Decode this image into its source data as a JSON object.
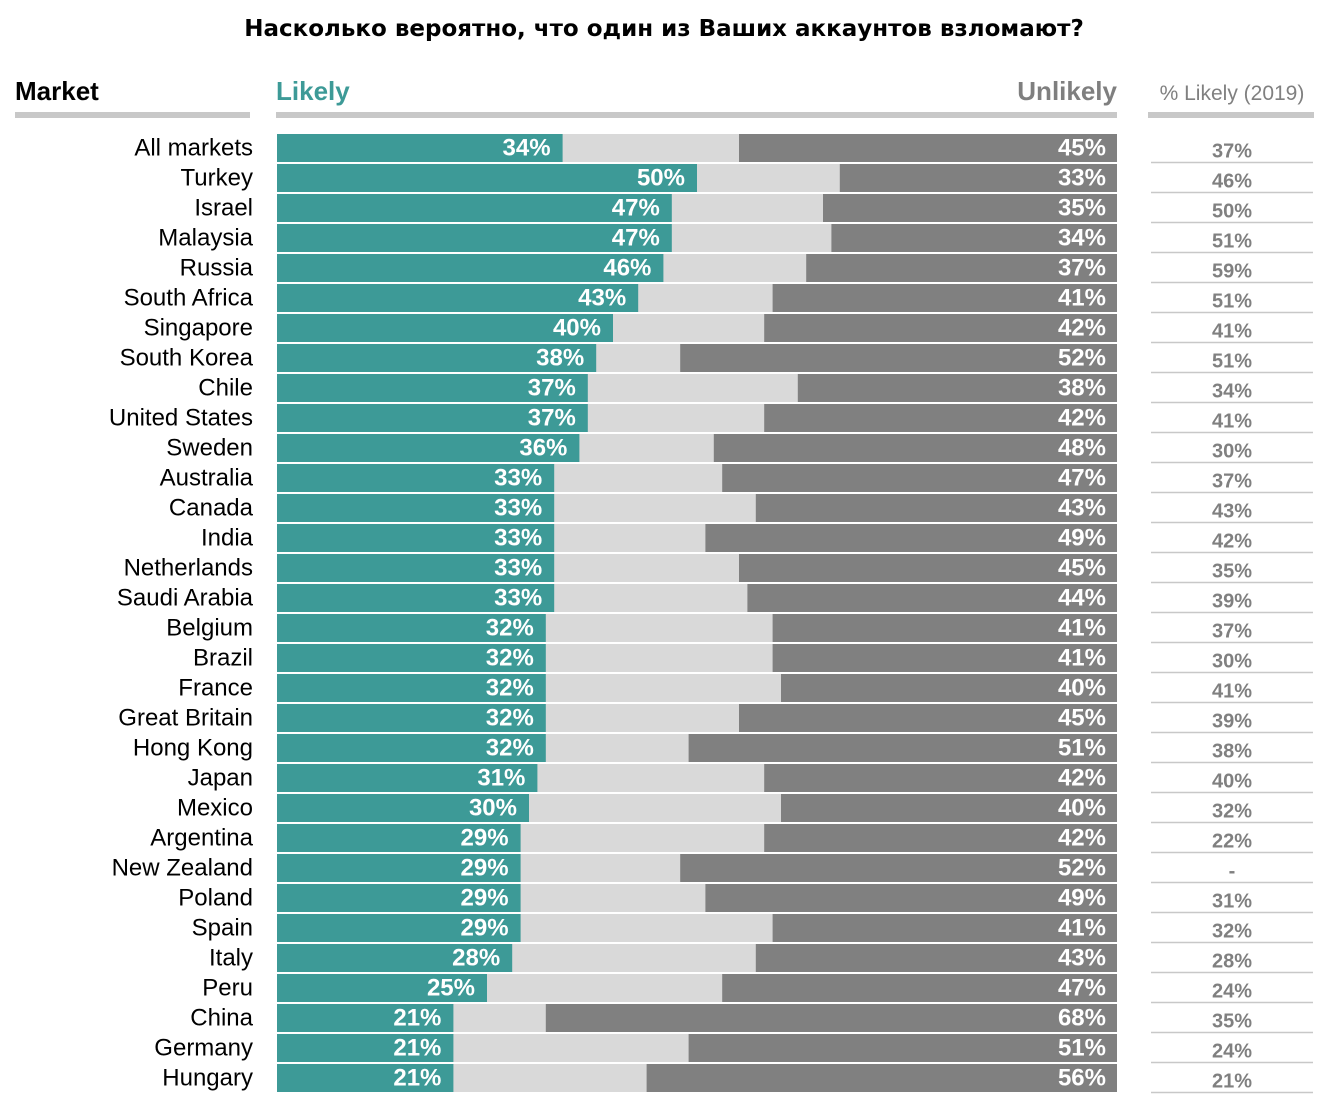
{
  "title": "Насколько вероятно, что один из Ваших аккаунтов взломают?",
  "headers": {
    "market": "Market",
    "likely": "Likely",
    "unlikely": "Unlikely",
    "likely_2019": "% Likely (2019)"
  },
  "colors": {
    "likely": "#3d9a97",
    "neutral": "#d9d9d9",
    "unlikely": "#808080",
    "rule": "#c8c8c8"
  },
  "chart_data": {
    "type": "bar",
    "orientation": "horizontal-stacked",
    "grid": false,
    "xlim": [
      0,
      100
    ],
    "categories": [
      "All markets",
      "Turkey",
      "Israel",
      "Malaysia",
      "Russia",
      "South Africa",
      "Singapore",
      "South Korea",
      "Chile",
      "United States",
      "Sweden",
      "Australia",
      "Canada",
      "India",
      "Netherlands",
      "Saudi Arabia",
      "Belgium",
      "Brazil",
      "France",
      "Great Britain",
      "Hong Kong",
      "Japan",
      "Mexico",
      "Argentina",
      "New Zealand",
      "Poland",
      "Spain",
      "Italy",
      "Peru",
      "China",
      "Germany",
      "Hungary"
    ],
    "series": [
      {
        "name": "Likely",
        "values": [
          34,
          50,
          47,
          47,
          46,
          43,
          40,
          38,
          37,
          37,
          36,
          33,
          33,
          33,
          33,
          33,
          32,
          32,
          32,
          32,
          32,
          31,
          30,
          29,
          29,
          29,
          29,
          28,
          25,
          21,
          21,
          21
        ]
      },
      {
        "name": "Unlikely",
        "values": [
          45,
          33,
          35,
          34,
          37,
          41,
          42,
          52,
          38,
          42,
          48,
          47,
          43,
          49,
          45,
          44,
          41,
          41,
          40,
          45,
          51,
          42,
          40,
          42,
          52,
          49,
          41,
          43,
          47,
          68,
          51,
          56
        ]
      }
    ],
    "likely_2019": [
      "37%",
      "46%",
      "50%",
      "51%",
      "59%",
      "51%",
      "41%",
      "51%",
      "34%",
      "41%",
      "30%",
      "37%",
      "43%",
      "42%",
      "35%",
      "39%",
      "37%",
      "30%",
      "41%",
      "39%",
      "38%",
      "40%",
      "32%",
      "22%",
      "-",
      "31%",
      "32%",
      "28%",
      "24%",
      "35%",
      "24%",
      "21%"
    ]
  }
}
